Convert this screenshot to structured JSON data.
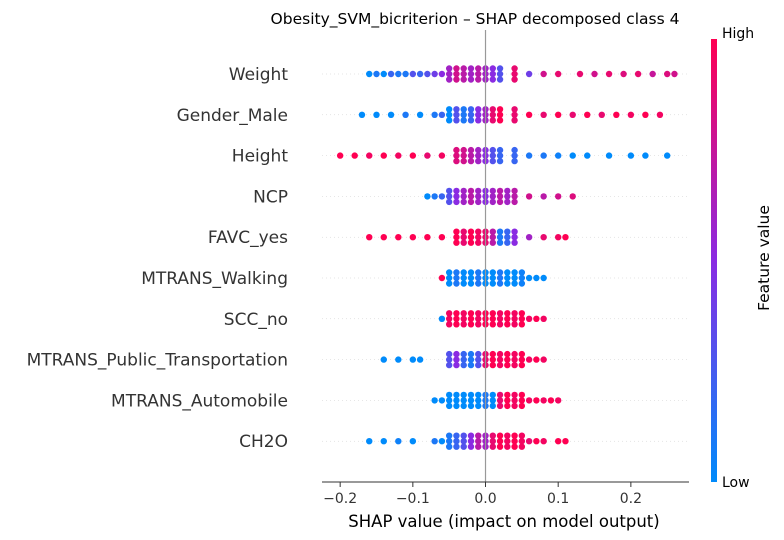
{
  "chart_data": {
    "type": "scatter",
    "subtype": "shap-beeswarm",
    "title": "Obesity_SVM_bicriterion – SHAP decomposed class 4",
    "xlabel": "SHAP value (impact on model output)",
    "xlim": [
      -0.225,
      0.28
    ],
    "xticks": [
      -0.2,
      -0.1,
      0.0,
      0.1,
      0.2
    ],
    "xtick_labels": [
      "−0.2",
      "−0.1",
      "0.0",
      "0.1",
      "0.2"
    ],
    "zero_line": 0.0,
    "colorbar": {
      "title": "Feature value",
      "high_label": "High",
      "low_label": "Low",
      "low_color": "#008bfb",
      "mid_color": "#8a2be2",
      "high_color": "#ff0052"
    },
    "features": [
      {
        "name": "Weight",
        "points": [
          {
            "x": -0.16,
            "c": 0.0
          },
          {
            "x": -0.15,
            "c": 0.1
          },
          {
            "x": -0.14,
            "c": 0.0
          },
          {
            "x": -0.13,
            "c": 0.2
          },
          {
            "x": -0.12,
            "c": 0.1
          },
          {
            "x": -0.11,
            "c": 0.1
          },
          {
            "x": -0.1,
            "c": 0.3
          },
          {
            "x": -0.09,
            "c": 0.2
          },
          {
            "x": -0.08,
            "c": 0.3
          },
          {
            "x": -0.07,
            "c": 0.4
          },
          {
            "x": -0.06,
            "c": 0.5
          },
          {
            "x": -0.05,
            "c": 0.6
          },
          {
            "x": -0.04,
            "c": 0.8
          },
          {
            "x": -0.03,
            "c": 0.7
          },
          {
            "x": -0.02,
            "c": 0.6
          },
          {
            "x": -0.01,
            "c": 0.7
          },
          {
            "x": 0.0,
            "c": 0.6
          },
          {
            "x": 0.01,
            "c": 0.5
          },
          {
            "x": 0.02,
            "c": 0.3
          },
          {
            "x": 0.04,
            "c": 0.9
          },
          {
            "x": 0.06,
            "c": 0.4
          },
          {
            "x": 0.08,
            "c": 0.8
          },
          {
            "x": 0.1,
            "c": 0.9
          },
          {
            "x": 0.13,
            "c": 0.9
          },
          {
            "x": 0.15,
            "c": 0.8
          },
          {
            "x": 0.17,
            "c": 0.9
          },
          {
            "x": 0.19,
            "c": 0.85
          },
          {
            "x": 0.21,
            "c": 0.9
          },
          {
            "x": 0.23,
            "c": 0.75
          },
          {
            "x": 0.25,
            "c": 0.85
          },
          {
            "x": 0.26,
            "c": 0.8
          }
        ]
      },
      {
        "name": "Gender_Male",
        "points": [
          {
            "x": -0.17,
            "c": 0.0
          },
          {
            "x": -0.15,
            "c": 0.0
          },
          {
            "x": -0.13,
            "c": 0.0
          },
          {
            "x": -0.11,
            "c": 0.1
          },
          {
            "x": -0.09,
            "c": 0.0
          },
          {
            "x": -0.07,
            "c": 0.1
          },
          {
            "x": -0.06,
            "c": 0.2
          },
          {
            "x": -0.05,
            "c": 0.0
          },
          {
            "x": -0.04,
            "c": 0.3
          },
          {
            "x": -0.03,
            "c": 0.1
          },
          {
            "x": -0.02,
            "c": 0.2
          },
          {
            "x": -0.01,
            "c": 0.5
          },
          {
            "x": 0.0,
            "c": 0.6
          },
          {
            "x": 0.01,
            "c": 0.9
          },
          {
            "x": 0.02,
            "c": 1.0
          },
          {
            "x": 0.04,
            "c": 0.9
          },
          {
            "x": 0.06,
            "c": 1.0
          },
          {
            "x": 0.08,
            "c": 0.9
          },
          {
            "x": 0.1,
            "c": 1.0
          },
          {
            "x": 0.12,
            "c": 0.9
          },
          {
            "x": 0.14,
            "c": 1.0
          },
          {
            "x": 0.16,
            "c": 0.9
          },
          {
            "x": 0.18,
            "c": 1.0
          },
          {
            "x": 0.2,
            "c": 0.95
          },
          {
            "x": 0.22,
            "c": 1.0
          },
          {
            "x": 0.24,
            "c": 0.95
          }
        ]
      },
      {
        "name": "Height",
        "points": [
          {
            "x": -0.2,
            "c": 1.0
          },
          {
            "x": -0.18,
            "c": 1.0
          },
          {
            "x": -0.16,
            "c": 0.95
          },
          {
            "x": -0.14,
            "c": 1.0
          },
          {
            "x": -0.12,
            "c": 0.95
          },
          {
            "x": -0.1,
            "c": 1.0
          },
          {
            "x": -0.08,
            "c": 0.9
          },
          {
            "x": -0.06,
            "c": 0.95
          },
          {
            "x": -0.04,
            "c": 0.85
          },
          {
            "x": -0.03,
            "c": 0.8
          },
          {
            "x": -0.02,
            "c": 0.7
          },
          {
            "x": -0.01,
            "c": 0.6
          },
          {
            "x": 0.0,
            "c": 0.5
          },
          {
            "x": 0.01,
            "c": 0.3
          },
          {
            "x": 0.02,
            "c": 0.2
          },
          {
            "x": 0.04,
            "c": 0.2
          },
          {
            "x": 0.06,
            "c": 0.1
          },
          {
            "x": 0.08,
            "c": 0.1
          },
          {
            "x": 0.1,
            "c": 0.05
          },
          {
            "x": 0.12,
            "c": 0.0
          },
          {
            "x": 0.14,
            "c": 0.0
          },
          {
            "x": 0.17,
            "c": 0.0
          },
          {
            "x": 0.2,
            "c": 0.0
          },
          {
            "x": 0.22,
            "c": 0.0
          },
          {
            "x": 0.25,
            "c": 0.0
          }
        ]
      },
      {
        "name": "NCP",
        "points": [
          {
            "x": -0.08,
            "c": 0.0
          },
          {
            "x": -0.07,
            "c": 0.1
          },
          {
            "x": -0.06,
            "c": 0.2
          },
          {
            "x": -0.05,
            "c": 0.3
          },
          {
            "x": -0.04,
            "c": 0.5
          },
          {
            "x": -0.03,
            "c": 0.6
          },
          {
            "x": -0.02,
            "c": 0.7
          },
          {
            "x": -0.01,
            "c": 0.6
          },
          {
            "x": 0.0,
            "c": 0.5
          },
          {
            "x": 0.01,
            "c": 0.6
          },
          {
            "x": 0.02,
            "c": 0.7
          },
          {
            "x": 0.03,
            "c": 0.6
          },
          {
            "x": 0.04,
            "c": 0.7
          },
          {
            "x": 0.06,
            "c": 0.8
          },
          {
            "x": 0.08,
            "c": 0.7
          },
          {
            "x": 0.1,
            "c": 0.8
          },
          {
            "x": 0.12,
            "c": 0.85
          }
        ]
      },
      {
        "name": "FAVC_yes",
        "points": [
          {
            "x": -0.16,
            "c": 1.0
          },
          {
            "x": -0.14,
            "c": 1.0
          },
          {
            "x": -0.12,
            "c": 1.0
          },
          {
            "x": -0.1,
            "c": 1.0
          },
          {
            "x": -0.08,
            "c": 1.0
          },
          {
            "x": -0.06,
            "c": 1.0
          },
          {
            "x": -0.04,
            "c": 1.0
          },
          {
            "x": -0.03,
            "c": 0.9
          },
          {
            "x": -0.02,
            "c": 1.0
          },
          {
            "x": -0.01,
            "c": 0.95
          },
          {
            "x": 0.0,
            "c": 0.9
          },
          {
            "x": 0.01,
            "c": 0.7
          },
          {
            "x": 0.02,
            "c": 0.1
          },
          {
            "x": 0.03,
            "c": 0.2
          },
          {
            "x": 0.04,
            "c": 0.5
          },
          {
            "x": 0.06,
            "c": 0.6
          },
          {
            "x": 0.08,
            "c": 0.9
          },
          {
            "x": 0.1,
            "c": 0.95
          },
          {
            "x": 0.11,
            "c": 1.0
          }
        ]
      },
      {
        "name": "MTRANS_Walking",
        "points": [
          {
            "x": -0.06,
            "c": 1.0
          },
          {
            "x": -0.05,
            "c": 0.0
          },
          {
            "x": -0.04,
            "c": 0.1
          },
          {
            "x": -0.03,
            "c": 0.0
          },
          {
            "x": -0.02,
            "c": 0.0
          },
          {
            "x": -0.01,
            "c": 0.1
          },
          {
            "x": 0.0,
            "c": 0.0
          },
          {
            "x": 0.01,
            "c": 0.0
          },
          {
            "x": 0.02,
            "c": 0.1
          },
          {
            "x": 0.03,
            "c": 0.0
          },
          {
            "x": 0.04,
            "c": 0.0
          },
          {
            "x": 0.05,
            "c": 0.05
          },
          {
            "x": 0.06,
            "c": 0.0
          },
          {
            "x": 0.07,
            "c": 0.0
          },
          {
            "x": 0.08,
            "c": 0.0
          }
        ]
      },
      {
        "name": "SCC_no",
        "points": [
          {
            "x": -0.06,
            "c": 0.0
          },
          {
            "x": -0.05,
            "c": 0.95
          },
          {
            "x": -0.04,
            "c": 1.0
          },
          {
            "x": -0.03,
            "c": 0.95
          },
          {
            "x": -0.02,
            "c": 1.0
          },
          {
            "x": -0.01,
            "c": 0.95
          },
          {
            "x": 0.0,
            "c": 1.0
          },
          {
            "x": 0.01,
            "c": 1.0
          },
          {
            "x": 0.02,
            "c": 0.95
          },
          {
            "x": 0.03,
            "c": 1.0
          },
          {
            "x": 0.04,
            "c": 0.95
          },
          {
            "x": 0.05,
            "c": 1.0
          },
          {
            "x": 0.06,
            "c": 0.95
          },
          {
            "x": 0.07,
            "c": 1.0
          },
          {
            "x": 0.08,
            "c": 0.95
          }
        ]
      },
      {
        "name": "MTRANS_Public_Transportation",
        "points": [
          {
            "x": -0.14,
            "c": 0.0
          },
          {
            "x": -0.12,
            "c": 0.0
          },
          {
            "x": -0.1,
            "c": 0.0
          },
          {
            "x": -0.09,
            "c": 0.0
          },
          {
            "x": -0.05,
            "c": 0.3
          },
          {
            "x": -0.04,
            "c": 0.5
          },
          {
            "x": -0.03,
            "c": 0.2
          },
          {
            "x": -0.02,
            "c": 0.1
          },
          {
            "x": -0.01,
            "c": 0.3
          },
          {
            "x": 0.0,
            "c": 0.9
          },
          {
            "x": 0.01,
            "c": 1.0
          },
          {
            "x": 0.02,
            "c": 0.95
          },
          {
            "x": 0.03,
            "c": 1.0
          },
          {
            "x": 0.04,
            "c": 0.95
          },
          {
            "x": 0.05,
            "c": 1.0
          },
          {
            "x": 0.06,
            "c": 0.95
          },
          {
            "x": 0.07,
            "c": 1.0
          },
          {
            "x": 0.08,
            "c": 0.95
          }
        ]
      },
      {
        "name": "MTRANS_Automobile",
        "points": [
          {
            "x": -0.07,
            "c": 0.0
          },
          {
            "x": -0.06,
            "c": 0.0
          },
          {
            "x": -0.05,
            "c": 0.0
          },
          {
            "x": -0.04,
            "c": 0.0
          },
          {
            "x": -0.03,
            "c": 0.0
          },
          {
            "x": -0.02,
            "c": 0.0
          },
          {
            "x": -0.01,
            "c": 0.0
          },
          {
            "x": 0.0,
            "c": 0.1
          },
          {
            "x": 0.01,
            "c": 0.0
          },
          {
            "x": 0.02,
            "c": 0.9
          },
          {
            "x": 0.03,
            "c": 1.0
          },
          {
            "x": 0.04,
            "c": 0.95
          },
          {
            "x": 0.05,
            "c": 1.0
          },
          {
            "x": 0.06,
            "c": 0.95
          },
          {
            "x": 0.07,
            "c": 1.0
          },
          {
            "x": 0.08,
            "c": 0.95
          },
          {
            "x": 0.09,
            "c": 1.0
          },
          {
            "x": 0.1,
            "c": 0.95
          }
        ]
      },
      {
        "name": "CH2O",
        "points": [
          {
            "x": -0.16,
            "c": 0.0
          },
          {
            "x": -0.14,
            "c": 0.0
          },
          {
            "x": -0.12,
            "c": 0.05
          },
          {
            "x": -0.1,
            "c": 0.0
          },
          {
            "x": -0.07,
            "c": 0.1
          },
          {
            "x": -0.06,
            "c": 0.0
          },
          {
            "x": -0.05,
            "c": 0.1
          },
          {
            "x": -0.04,
            "c": 0.2
          },
          {
            "x": -0.03,
            "c": 0.3
          },
          {
            "x": -0.02,
            "c": 0.5
          },
          {
            "x": -0.01,
            "c": 0.7
          },
          {
            "x": 0.0,
            "c": 0.6
          },
          {
            "x": 0.01,
            "c": 0.9
          },
          {
            "x": 0.02,
            "c": 1.0
          },
          {
            "x": 0.03,
            "c": 0.95
          },
          {
            "x": 0.04,
            "c": 1.0
          },
          {
            "x": 0.05,
            "c": 0.95
          },
          {
            "x": 0.06,
            "c": 0.9
          },
          {
            "x": 0.07,
            "c": 1.0
          },
          {
            "x": 0.08,
            "c": 0.95
          },
          {
            "x": 0.1,
            "c": 1.0
          },
          {
            "x": 0.11,
            "c": 1.0
          }
        ]
      }
    ]
  }
}
